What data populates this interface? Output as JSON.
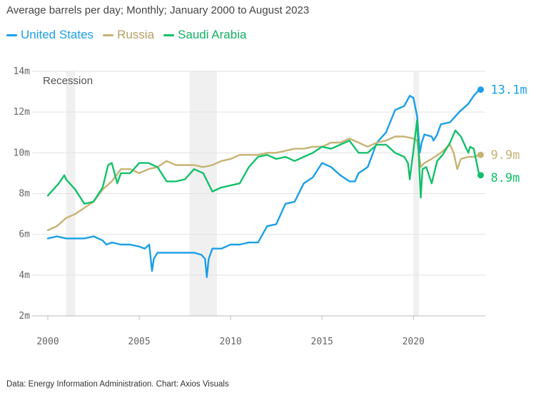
{
  "chart_data": {
    "type": "line",
    "subtitle": "Average barrels per day; Monthly; January 2000 to August 2023",
    "source": "Data: Energy Information Administration. Chart: Axios Visuals",
    "xlim": [
      2000,
      2023.7
    ],
    "ylim": [
      2,
      14
    ],
    "x_ticks": [
      {
        "value": 2000,
        "label": "2000"
      },
      {
        "value": 2005,
        "label": "2005"
      },
      {
        "value": 2010,
        "label": "2010"
      },
      {
        "value": 2015,
        "label": "2015"
      },
      {
        "value": 2020,
        "label": "2020"
      }
    ],
    "y_ticks": [
      {
        "value": 2,
        "label": "2m"
      },
      {
        "value": 4,
        "label": "4m"
      },
      {
        "value": 6,
        "label": "6m"
      },
      {
        "value": 8,
        "label": "8m"
      },
      {
        "value": 10,
        "label": "10m"
      },
      {
        "value": 12,
        "label": "12m"
      },
      {
        "value": 14,
        "label": "14m"
      }
    ],
    "grid": "horizontal",
    "legend_position": "top-left",
    "annotation": "Recession",
    "recessions": [
      [
        2001.0,
        2001.5
      ],
      [
        2007.75,
        2009.25
      ],
      [
        2020.0,
        2020.3
      ]
    ],
    "series": [
      {
        "name": "United States",
        "color": "#1a9fe8",
        "end_label": "13.1m",
        "x": [
          2000,
          2000.5,
          2001,
          2001.5,
          2002,
          2002.5,
          2003,
          2003.2,
          2003.5,
          2004,
          2004.5,
          2005,
          2005.3,
          2005.55,
          2005.7,
          2005.8,
          2006,
          2006.5,
          2007,
          2007.5,
          2008,
          2008.4,
          2008.6,
          2008.7,
          2008.8,
          2009,
          2009.5,
          2010,
          2010.5,
          2011,
          2011.5,
          2012,
          2012.5,
          2013,
          2013.5,
          2014,
          2014.5,
          2015,
          2015.5,
          2016,
          2016.5,
          2016.8,
          2017,
          2017.5,
          2018,
          2018.5,
          2019,
          2019.5,
          2019.8,
          2020,
          2020.2,
          2020.35,
          2020.45,
          2020.6,
          2021,
          2021.1,
          2021.3,
          2021.5,
          2022,
          2022.5,
          2023,
          2023.3,
          2023.6
        ],
        "y": [
          5.8,
          5.9,
          5.8,
          5.8,
          5.8,
          5.9,
          5.7,
          5.5,
          5.6,
          5.5,
          5.5,
          5.4,
          5.3,
          5.5,
          4.2,
          4.8,
          5.1,
          5.1,
          5.1,
          5.1,
          5.1,
          5.0,
          4.8,
          3.9,
          4.8,
          5.3,
          5.3,
          5.5,
          5.5,
          5.6,
          5.6,
          6.4,
          6.5,
          7.5,
          7.6,
          8.5,
          8.8,
          9.5,
          9.3,
          8.9,
          8.6,
          8.6,
          9.0,
          9.3,
          10.5,
          11.0,
          12.1,
          12.3,
          12.8,
          12.7,
          11.8,
          10.0,
          10.5,
          10.9,
          10.8,
          10.6,
          10.9,
          11.4,
          11.5,
          12.0,
          12.4,
          12.8,
          13.1
        ]
      },
      {
        "name": "Russia",
        "color": "#c6b374",
        "end_label": "9.9m",
        "x": [
          2000,
          2000.5,
          2001,
          2001.5,
          2002,
          2002.5,
          2003,
          2003.5,
          2004,
          2004.5,
          2005,
          2005.5,
          2006,
          2006.5,
          2007,
          2007.5,
          2008,
          2008.5,
          2009,
          2009.5,
          2010,
          2010.5,
          2011,
          2011.5,
          2012,
          2012.5,
          2013,
          2013.5,
          2014,
          2014.5,
          2015,
          2015.5,
          2016,
          2016.5,
          2017,
          2017.5,
          2018,
          2018.5,
          2019,
          2019.5,
          2020,
          2020.2,
          2020.4,
          2020.6,
          2021,
          2021.5,
          2022,
          2022.2,
          2022.4,
          2022.6,
          2023,
          2023.3,
          2023.6
        ],
        "y": [
          6.2,
          6.4,
          6.8,
          7.0,
          7.3,
          7.6,
          8.2,
          8.6,
          9.2,
          9.2,
          9.0,
          9.2,
          9.3,
          9.6,
          9.4,
          9.4,
          9.4,
          9.3,
          9.4,
          9.6,
          9.7,
          9.9,
          9.9,
          9.9,
          10.0,
          10.0,
          10.1,
          10.2,
          10.2,
          10.3,
          10.3,
          10.5,
          10.5,
          10.7,
          10.5,
          10.3,
          10.5,
          10.6,
          10.8,
          10.8,
          10.7,
          10.6,
          9.3,
          9.5,
          9.7,
          10.0,
          10.4,
          10.0,
          9.2,
          9.7,
          9.8,
          9.8,
          9.9
        ]
      },
      {
        "name": "Saudi Arabia",
        "color": "#13c06a",
        "end_label": "8.9m",
        "x": [
          2000,
          2000.3,
          2000.6,
          2000.9,
          2001,
          2001.5,
          2002,
          2002.5,
          2003,
          2003.3,
          2003.5,
          2003.8,
          2004,
          2004.5,
          2005,
          2005.5,
          2006,
          2006.5,
          2007,
          2007.5,
          2008,
          2008.5,
          2009,
          2009.5,
          2010,
          2010.5,
          2011,
          2011.5,
          2012,
          2012.5,
          2013,
          2013.5,
          2014,
          2014.5,
          2015,
          2015.5,
          2016,
          2016.5,
          2017,
          2017.5,
          2018,
          2018.5,
          2019,
          2019.5,
          2019.7,
          2019.8,
          2020,
          2020.2,
          2020.4,
          2020.5,
          2020.7,
          2021,
          2021.3,
          2021.6,
          2022,
          2022.3,
          2022.6,
          2023,
          2023.1,
          2023.3,
          2023.6
        ],
        "y": [
          7.9,
          8.2,
          8.5,
          8.9,
          8.7,
          8.2,
          7.5,
          7.6,
          8.3,
          9.4,
          9.5,
          8.5,
          9.0,
          9.0,
          9.5,
          9.5,
          9.3,
          8.6,
          8.6,
          8.7,
          9.2,
          9.0,
          8.1,
          8.3,
          8.4,
          8.5,
          9.3,
          9.8,
          9.9,
          9.7,
          9.8,
          9.6,
          9.8,
          10.0,
          10.3,
          10.2,
          10.4,
          10.6,
          10.0,
          10.0,
          10.4,
          10.4,
          10.0,
          9.8,
          9.5,
          8.7,
          10.1,
          11.6,
          7.8,
          9.2,
          9.3,
          8.5,
          9.6,
          9.9,
          10.5,
          11.1,
          10.8,
          10.0,
          10.3,
          10.2,
          8.9
        ]
      }
    ]
  }
}
